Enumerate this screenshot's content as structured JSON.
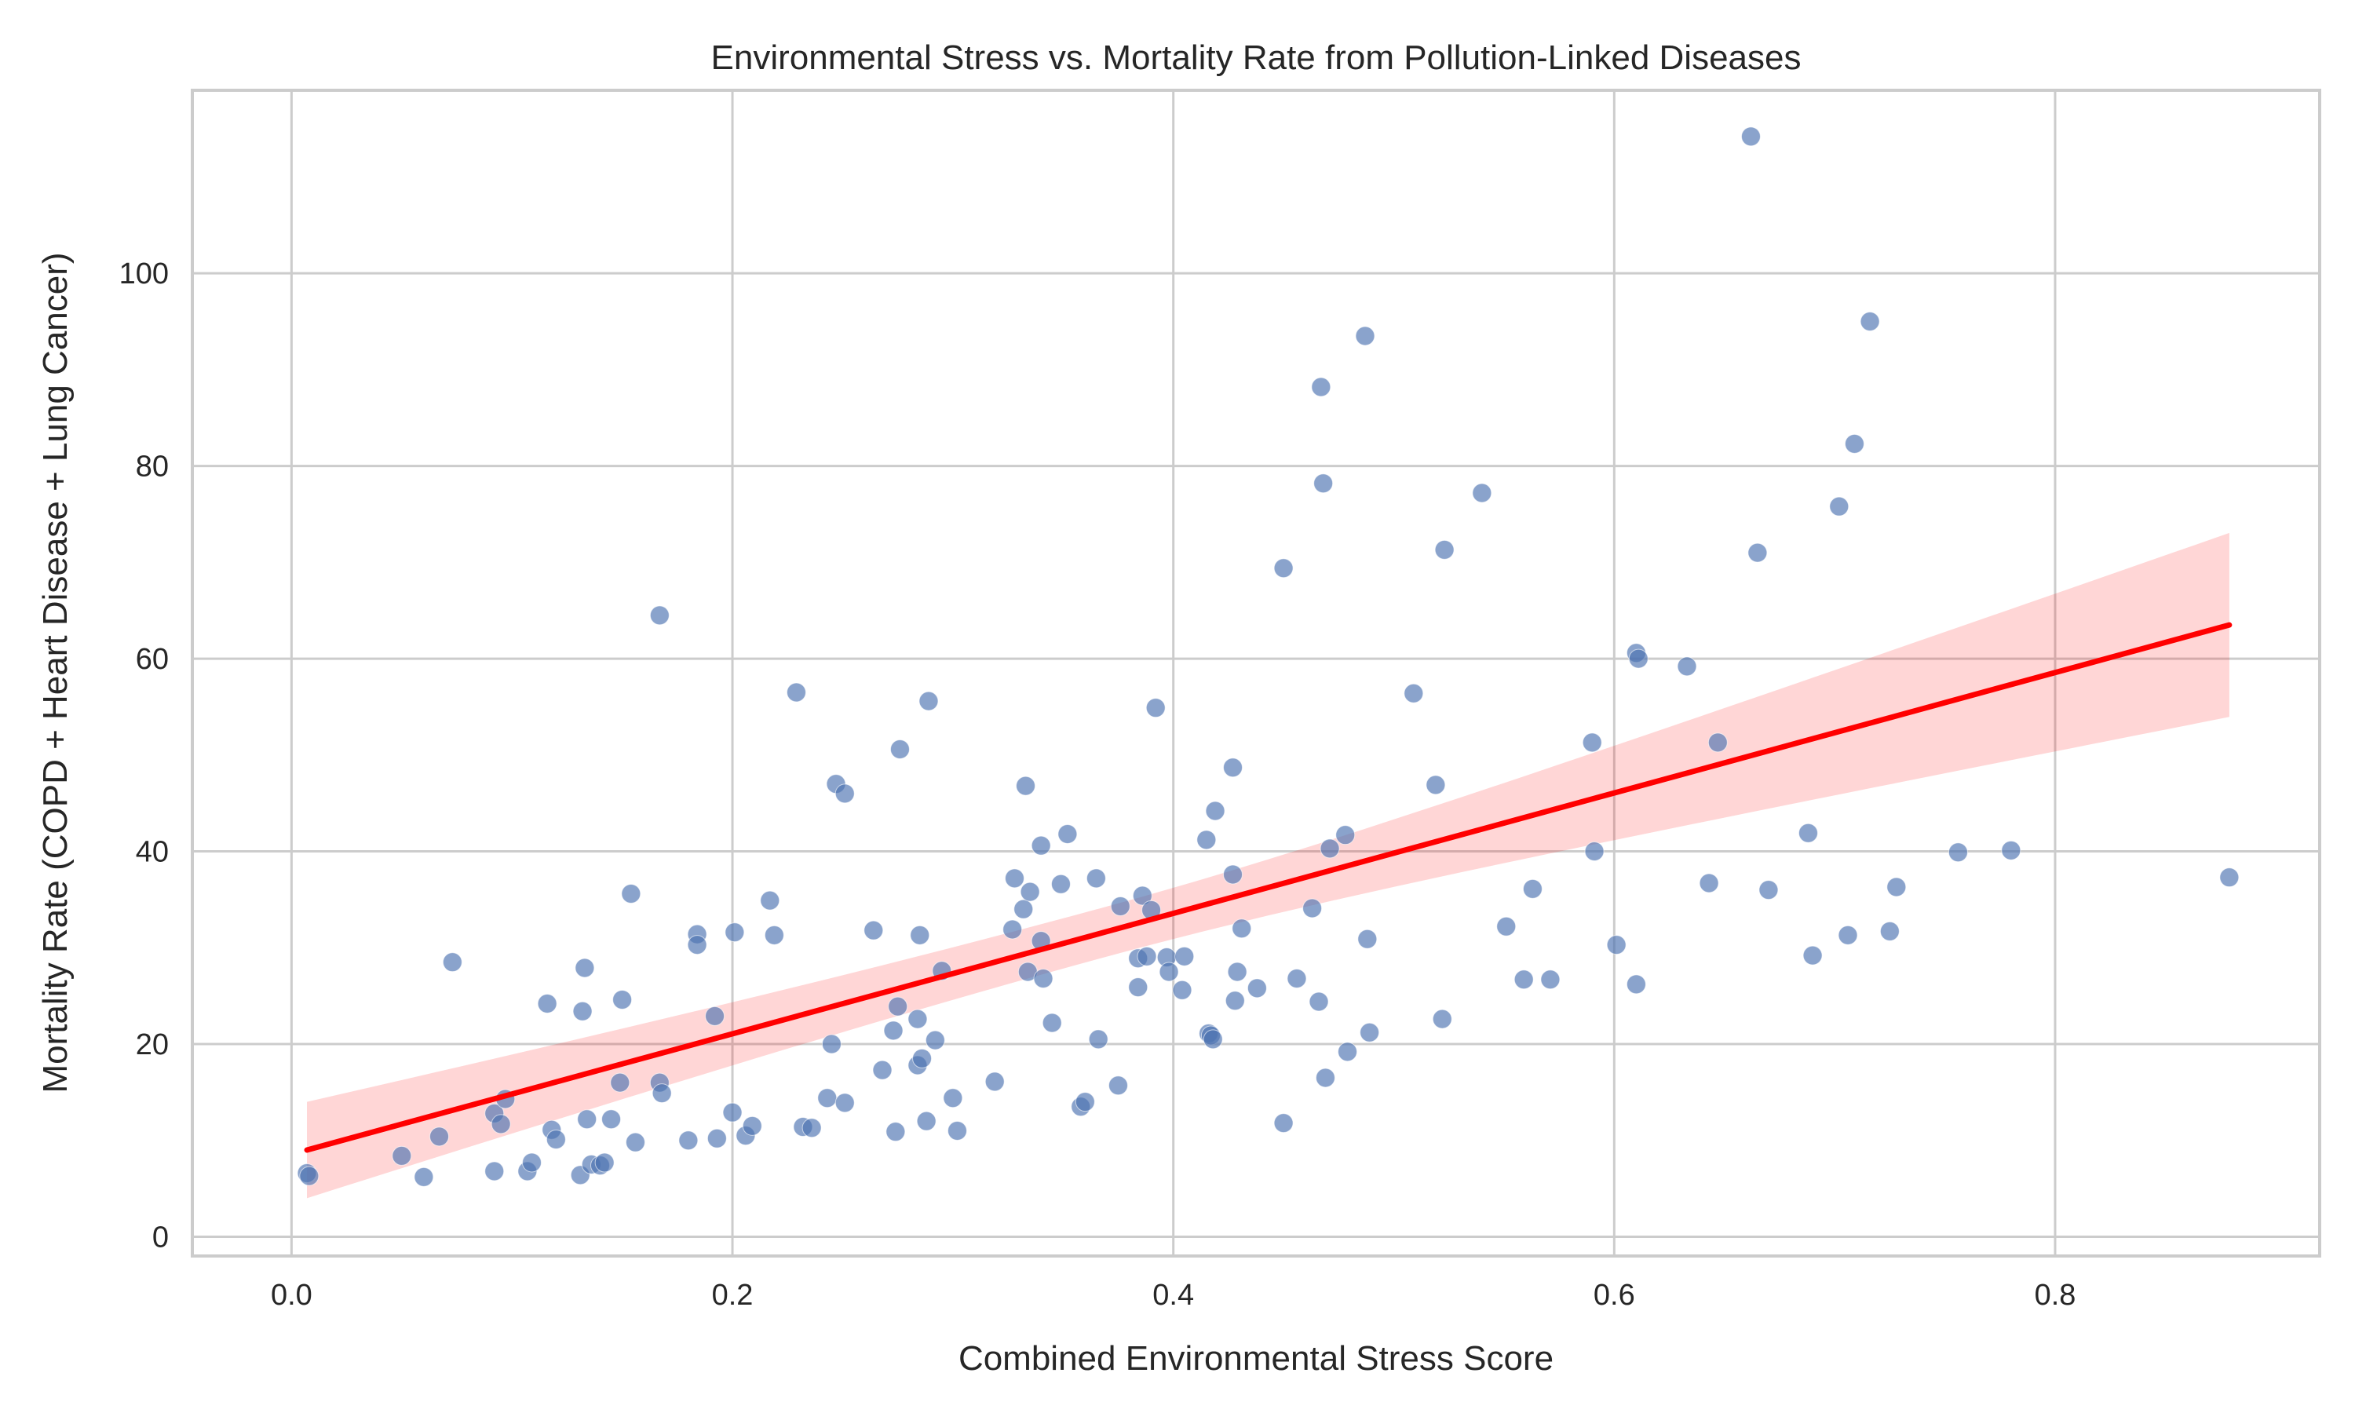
{
  "chart_data": {
    "type": "scatter",
    "title": "Environmental Stress vs. Mortality Rate from Pollution-Linked Diseases",
    "xlabel": "Combined Environmental Stress Score",
    "ylabel": "Mortality Rate (COPD + Heart Disease + Lung Cancer)",
    "xlim": [
      -0.045,
      0.92
    ],
    "ylim": [
      -2,
      119
    ],
    "xticks": [
      0.0,
      0.2,
      0.4,
      0.6,
      0.8
    ],
    "xtick_labels": [
      "0.0",
      "0.2",
      "0.4",
      "0.6",
      "0.8"
    ],
    "yticks": [
      0,
      20,
      40,
      60,
      80,
      100
    ],
    "ytick_labels": [
      "0",
      "20",
      "40",
      "60",
      "80",
      "100"
    ],
    "grid": true,
    "colors": {
      "points": "#4c72b0",
      "regression": "#ff0000",
      "band": "#ffcccc"
    },
    "series": [
      {
        "kind": "points",
        "points": [
          [
            0.007,
            6.6
          ],
          [
            0.008,
            6.3
          ],
          [
            0.05,
            8.4
          ],
          [
            0.06,
            6.2
          ],
          [
            0.067,
            10.4
          ],
          [
            0.073,
            28.5
          ],
          [
            0.092,
            6.8
          ],
          [
            0.092,
            12.8
          ],
          [
            0.095,
            11.7
          ],
          [
            0.097,
            14.3
          ],
          [
            0.107,
            6.8
          ],
          [
            0.109,
            7.7
          ],
          [
            0.116,
            24.2
          ],
          [
            0.118,
            11.1
          ],
          [
            0.12,
            10.1
          ],
          [
            0.131,
            6.4
          ],
          [
            0.132,
            23.4
          ],
          [
            0.133,
            27.9
          ],
          [
            0.134,
            12.2
          ],
          [
            0.136,
            7.5
          ],
          [
            0.14,
            7.4
          ],
          [
            0.142,
            7.7
          ],
          [
            0.145,
            12.2
          ],
          [
            0.149,
            16.0
          ],
          [
            0.15,
            24.6
          ],
          [
            0.154,
            35.6
          ],
          [
            0.156,
            9.8
          ],
          [
            0.167,
            64.5
          ],
          [
            0.167,
            16.0
          ],
          [
            0.168,
            14.9
          ],
          [
            0.18,
            10.0
          ],
          [
            0.184,
            31.4
          ],
          [
            0.184,
            30.3
          ],
          [
            0.192,
            22.9
          ],
          [
            0.193,
            10.2
          ],
          [
            0.2,
            12.9
          ],
          [
            0.201,
            31.6
          ],
          [
            0.206,
            10.5
          ],
          [
            0.209,
            11.5
          ],
          [
            0.217,
            34.9
          ],
          [
            0.219,
            31.3
          ],
          [
            0.229,
            56.5
          ],
          [
            0.232,
            11.4
          ],
          [
            0.236,
            11.3
          ],
          [
            0.243,
            14.4
          ],
          [
            0.245,
            20.0
          ],
          [
            0.247,
            47.0
          ],
          [
            0.251,
            46.0
          ],
          [
            0.251,
            13.9
          ],
          [
            0.264,
            31.8
          ],
          [
            0.268,
            17.3
          ],
          [
            0.273,
            21.4
          ],
          [
            0.274,
            10.9
          ],
          [
            0.275,
            23.9
          ],
          [
            0.276,
            50.6
          ],
          [
            0.284,
            22.6
          ],
          [
            0.284,
            17.8
          ],
          [
            0.285,
            31.3
          ],
          [
            0.286,
            18.5
          ],
          [
            0.288,
            12.0
          ],
          [
            0.289,
            55.6
          ],
          [
            0.292,
            20.4
          ],
          [
            0.295,
            27.6
          ],
          [
            0.3,
            14.4
          ],
          [
            0.302,
            11.0
          ],
          [
            0.319,
            16.1
          ],
          [
            0.327,
            31.9
          ],
          [
            0.328,
            37.2
          ],
          [
            0.332,
            34.0
          ],
          [
            0.333,
            46.8
          ],
          [
            0.334,
            27.5
          ],
          [
            0.335,
            35.8
          ],
          [
            0.34,
            40.6
          ],
          [
            0.34,
            30.7
          ],
          [
            0.341,
            26.8
          ],
          [
            0.345,
            22.2
          ],
          [
            0.349,
            36.6
          ],
          [
            0.352,
            41.8
          ],
          [
            0.358,
            13.5
          ],
          [
            0.36,
            14.0
          ],
          [
            0.365,
            37.2
          ],
          [
            0.366,
            20.5
          ],
          [
            0.375,
            15.7
          ],
          [
            0.376,
            34.3
          ],
          [
            0.384,
            28.9
          ],
          [
            0.384,
            25.9
          ],
          [
            0.386,
            35.4
          ],
          [
            0.388,
            29.1
          ],
          [
            0.39,
            33.9
          ],
          [
            0.392,
            54.9
          ],
          [
            0.397,
            29.0
          ],
          [
            0.398,
            27.5
          ],
          [
            0.404,
            25.6
          ],
          [
            0.405,
            29.1
          ],
          [
            0.415,
            41.2
          ],
          [
            0.416,
            21.1
          ],
          [
            0.417,
            20.9
          ],
          [
            0.418,
            20.5
          ],
          [
            0.419,
            44.2
          ],
          [
            0.427,
            48.7
          ],
          [
            0.427,
            37.6
          ],
          [
            0.428,
            24.5
          ],
          [
            0.429,
            27.5
          ],
          [
            0.431,
            32.0
          ],
          [
            0.438,
            25.8
          ],
          [
            0.45,
            69.4
          ],
          [
            0.45,
            11.8
          ],
          [
            0.456,
            26.8
          ],
          [
            0.463,
            34.1
          ],
          [
            0.466,
            24.4
          ],
          [
            0.467,
            88.2
          ],
          [
            0.468,
            78.2
          ],
          [
            0.469,
            16.5
          ],
          [
            0.471,
            40.3
          ],
          [
            0.478,
            41.7
          ],
          [
            0.479,
            19.2
          ],
          [
            0.487,
            93.5
          ],
          [
            0.488,
            30.9
          ],
          [
            0.489,
            21.2
          ],
          [
            0.509,
            56.4
          ],
          [
            0.519,
            46.9
          ],
          [
            0.522,
            22.6
          ],
          [
            0.523,
            71.3
          ],
          [
            0.54,
            77.2
          ],
          [
            0.551,
            32.2
          ],
          [
            0.559,
            26.7
          ],
          [
            0.563,
            36.1
          ],
          [
            0.571,
            26.7
          ],
          [
            0.59,
            51.3
          ],
          [
            0.591,
            40.0
          ],
          [
            0.601,
            30.3
          ],
          [
            0.61,
            26.2
          ],
          [
            0.61,
            60.6
          ],
          [
            0.611,
            60.0
          ],
          [
            0.633,
            59.2
          ],
          [
            0.643,
            36.7
          ],
          [
            0.647,
            51.3
          ],
          [
            0.662,
            114.2
          ],
          [
            0.665,
            71.0
          ],
          [
            0.67,
            36.0
          ],
          [
            0.688,
            41.9
          ],
          [
            0.69,
            29.2
          ],
          [
            0.702,
            75.8
          ],
          [
            0.706,
            31.3
          ],
          [
            0.709,
            82.3
          ],
          [
            0.716,
            95.0
          ],
          [
            0.725,
            31.7
          ],
          [
            0.728,
            36.3
          ],
          [
            0.756,
            39.9
          ],
          [
            0.78,
            40.1
          ],
          [
            0.879,
            37.3
          ]
        ]
      },
      {
        "kind": "regression",
        "x": [
          0.007,
          0.879
        ],
        "y": [
          9.0,
          63.5
        ],
        "ci_lower": [
          4.0,
          54.5
        ],
        "ci_upper": [
          14.0,
          73.6
        ]
      }
    ]
  }
}
